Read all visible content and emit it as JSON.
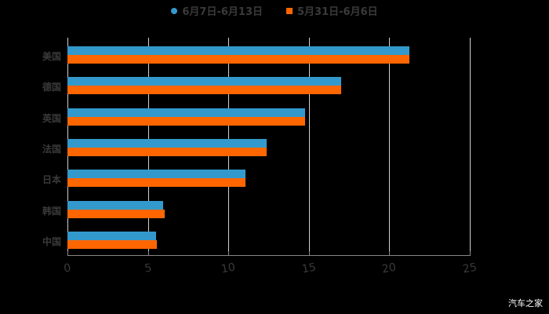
{
  "chart_data": {
    "type": "bar",
    "orientation": "horizontal",
    "title": "",
    "xlabel": "",
    "ylabel": "",
    "xlim": [
      0,
      25
    ],
    "x_ticks": [
      "0",
      "5",
      "10",
      "15",
      "20",
      "25"
    ],
    "grid": true,
    "legend_position": "top",
    "categories": [
      "美国",
      "德国",
      "英国",
      "法国",
      "日本",
      "韩国",
      "中国"
    ],
    "series": [
      {
        "name": "6月7日-6月13日",
        "color": "#3399cc",
        "values": [
          21.25,
          17.0,
          14.75,
          12.4,
          11.05,
          5.95,
          5.5
        ]
      },
      {
        "name": "5月31日-6月6日",
        "color": "#ff6600",
        "values": [
          21.25,
          17.0,
          14.75,
          12.4,
          11.05,
          6.05,
          5.55
        ]
      }
    ]
  },
  "legend": {
    "series1": "6月7日-6月13日",
    "series2": "5月31日-6月6日"
  },
  "watermark": "汽车之家"
}
